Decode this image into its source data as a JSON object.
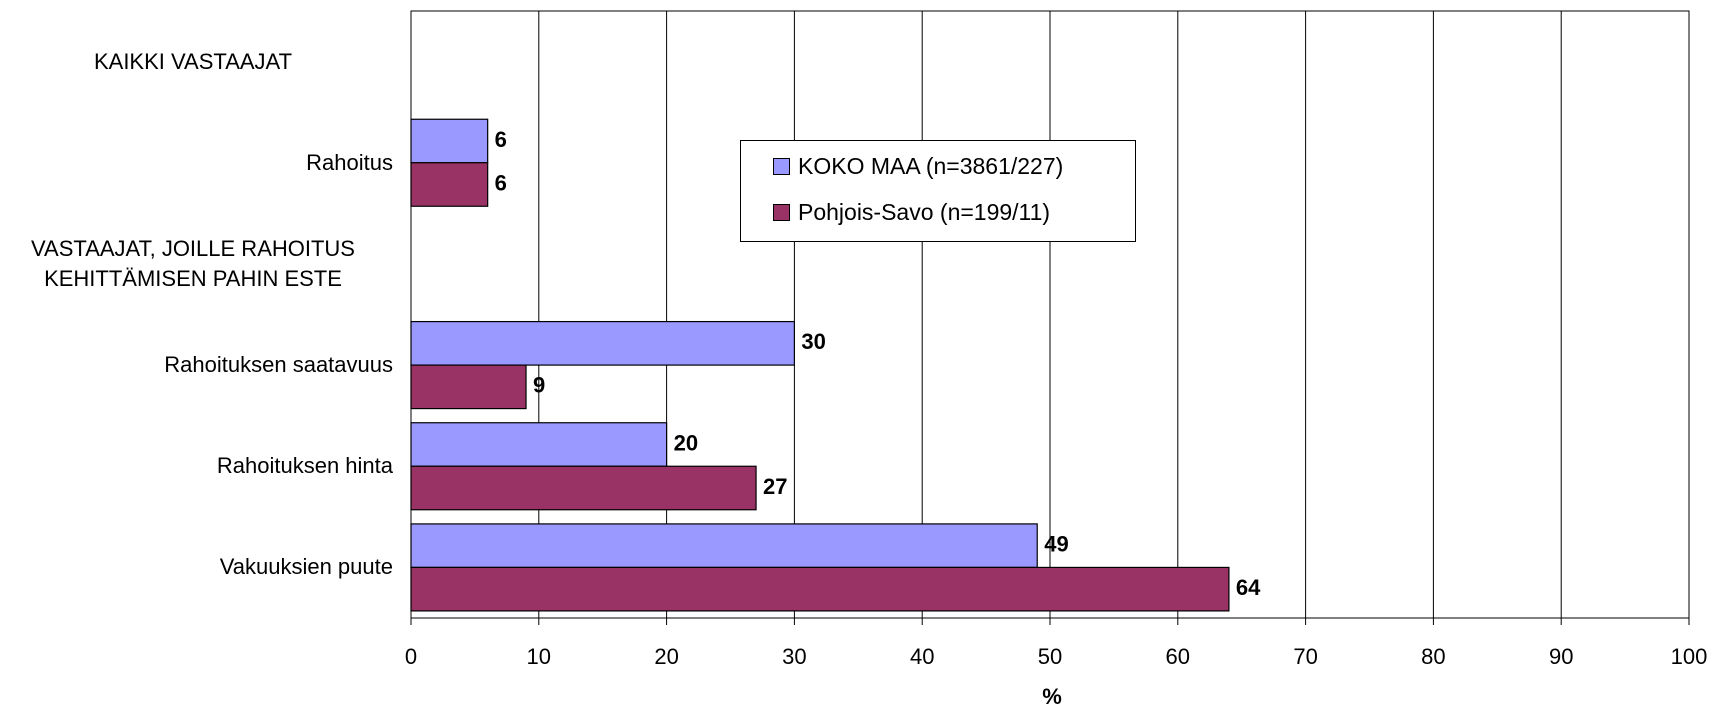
{
  "chart_data": {
    "type": "bar",
    "orientation": "horizontal",
    "categories": [
      "KAIKKI VASTAAJAT",
      "Rahoitus",
      "VASTAAJAT, JOILLE RAHOITUS\nKEHITTÄMISEN PAHIN ESTE",
      "Rahoituksen saatavuus",
      "Rahoituksen hinta",
      "Vakuuksien puute"
    ],
    "series": [
      {
        "name": "KOKO MAA (n=3861/227)",
        "color": "#9999ff",
        "values": [
          null,
          6,
          null,
          30,
          20,
          49
        ]
      },
      {
        "name": "Pohjois-Savo (n=199/11)",
        "color": "#993366",
        "values": [
          null,
          6,
          null,
          9,
          27,
          64
        ]
      }
    ],
    "xlabel": "%",
    "xlim": [
      0,
      100
    ],
    "xticks": [
      0,
      10,
      20,
      30,
      40,
      50,
      60,
      70,
      80,
      90,
      100
    ],
    "grid": true,
    "legend": true
  }
}
